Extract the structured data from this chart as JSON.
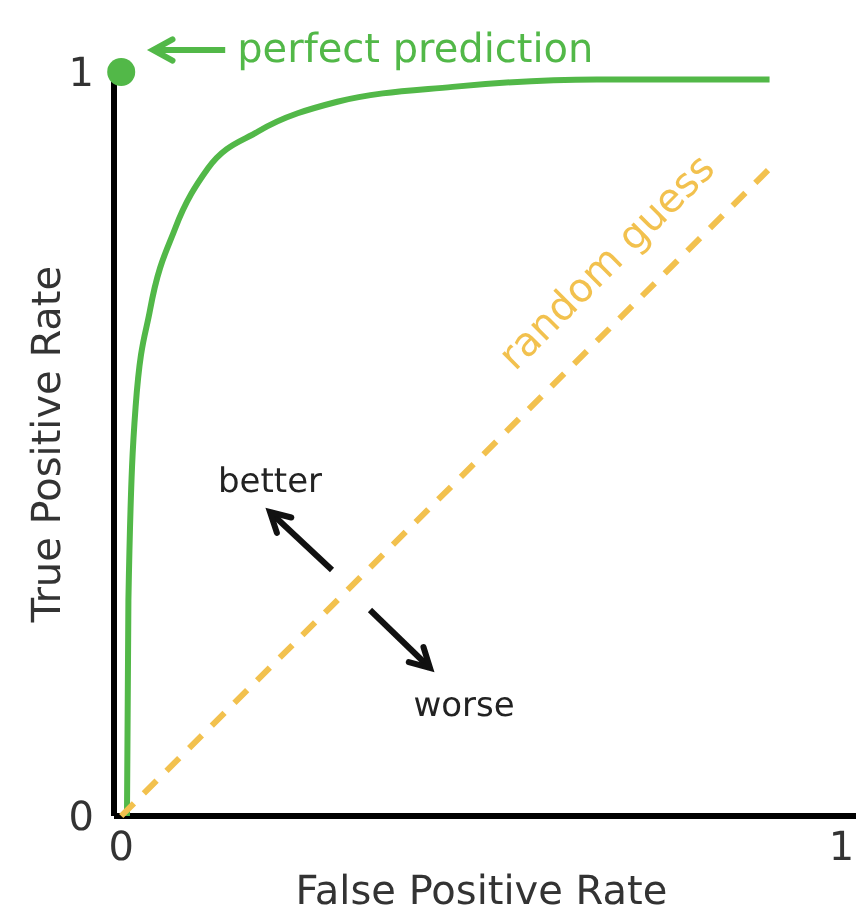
{
  "chart_data": {
    "type": "line",
    "xlabel": "False Positive Rate",
    "ylabel": "True Positive Rate",
    "xlim": [
      -0.01,
      1.02
    ],
    "ylim": [
      0,
      1
    ],
    "xticks": [
      0,
      1
    ],
    "yticks": [
      0,
      1
    ],
    "grid": false,
    "series": [
      {
        "color": "#52b848",
        "x": [
          0.008,
          0.01,
          0.02,
          0.04,
          0.075,
          0.12,
          0.19,
          0.3,
          0.46,
          0.66,
          0.9
        ],
        "values": [
          0,
          0.29,
          0.55,
          0.68,
          0.79,
          0.87,
          0.92,
          0.96,
          0.98,
          0.99,
          0.99
        ]
      },
      {
        "color": "#f2c14e",
        "line_style": "dashed",
        "x": [
          0,
          0.9
        ],
        "values": [
          0,
          0.87
        ]
      },
      {
        "type": "scatter",
        "marker": "circle",
        "color": "#52b848",
        "x": [
          0
        ],
        "values": [
          1
        ]
      }
    ],
    "annotations": [
      {
        "text": "perfect prediction",
        "x": 0,
        "y": 1
      },
      {
        "text": "random guess",
        "x": 0.72,
        "y": 0.7
      },
      "better",
      "worse"
    ]
  }
}
